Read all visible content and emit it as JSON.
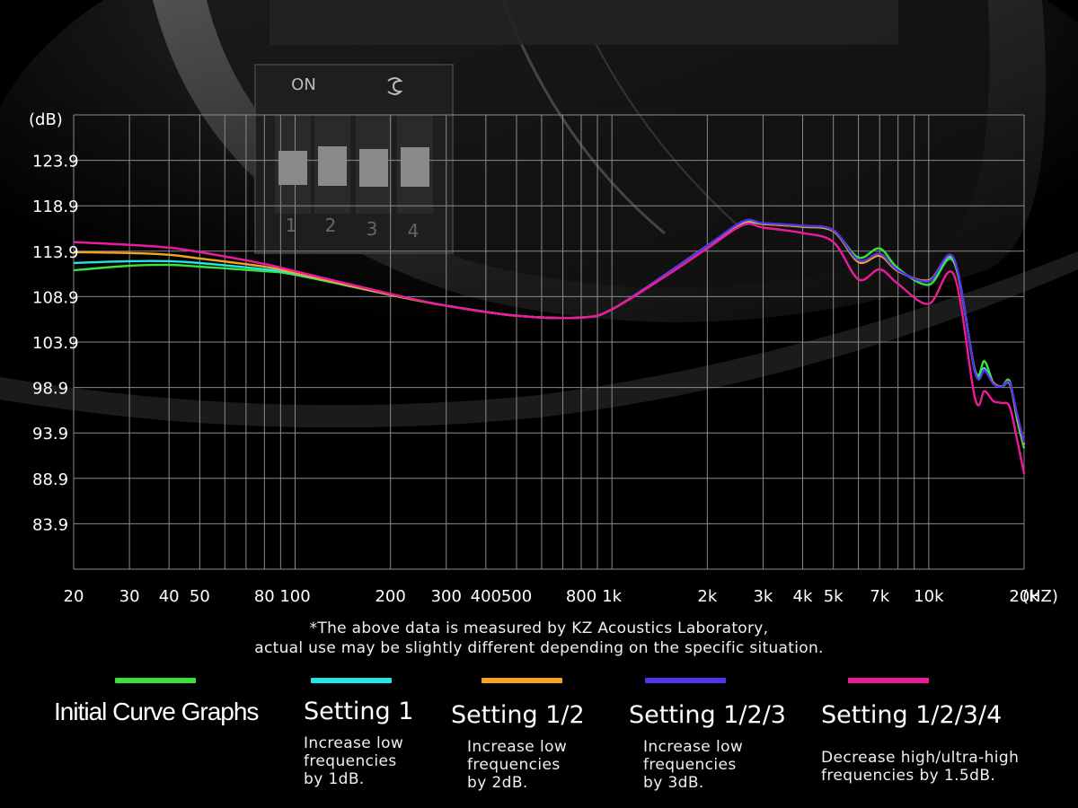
{
  "chart_data": {
    "type": "line",
    "ylabel": "(dB)",
    "xlabel": "(HZ)",
    "y_ticks": [
      "123.9",
      "118.9",
      "113.9",
      "108.9",
      "103.9",
      "98.9",
      "93.9",
      "88.9",
      "83.9"
    ],
    "y_tick_values": [
      123.9,
      118.9,
      113.9,
      108.9,
      103.9,
      98.9,
      93.9,
      88.9,
      83.9
    ],
    "ylim": [
      78.9,
      128.9
    ],
    "x_scale": "log",
    "xlim": [
      20,
      20000
    ],
    "x_ticks": [
      "20",
      "30",
      "40",
      "50",
      "80",
      "100",
      "200",
      "300",
      "400",
      "500",
      "800",
      "1k",
      "2k",
      "3k",
      "4k",
      "5k",
      "7k",
      "10k",
      "20k"
    ],
    "x_tick_values": [
      20,
      30,
      40,
      50,
      80,
      100,
      200,
      300,
      400,
      500,
      800,
      1000,
      2000,
      3000,
      4000,
      5000,
      7000,
      10000,
      20000
    ],
    "grid": true,
    "series": [
      {
        "name": "Initial Curve Graphs",
        "color": "#39e33a",
        "x": [
          20,
          30,
          40,
          50,
          80,
          100,
          200,
          300,
          500,
          800,
          1000,
          1500,
          2000,
          2600,
          3000,
          4000,
          5000,
          6000,
          7000,
          8000,
          10000,
          12000,
          14000,
          15000,
          16000,
          17000,
          18000,
          19000,
          20000
        ],
        "y": [
          111.8,
          112.3,
          112.4,
          112.2,
          111.7,
          111.3,
          109.1,
          107.9,
          106.8,
          106.6,
          107.5,
          111.5,
          114.5,
          116.9,
          116.9,
          116.6,
          116.1,
          113.2,
          114.2,
          112.0,
          110.2,
          112.7,
          100.8,
          101.8,
          99.4,
          99.0,
          99.6,
          95.4,
          92.2
        ]
      },
      {
        "name": "Setting 1",
        "color": "#22e6e6",
        "x": [
          20,
          30,
          40,
          50,
          80,
          100,
          200,
          300,
          500,
          800,
          1000,
          1500,
          2000,
          2600,
          3000,
          4000,
          5000,
          6000,
          7000,
          8000,
          10000,
          12000,
          14000,
          15000,
          16000,
          17000,
          18000,
          19000,
          20000
        ],
        "y": [
          112.6,
          112.8,
          112.8,
          112.6,
          111.9,
          111.4,
          109.1,
          107.9,
          106.8,
          106.6,
          107.5,
          111.5,
          114.5,
          117.0,
          116.9,
          116.6,
          116.2,
          112.8,
          113.6,
          111.8,
          110.6,
          112.9,
          100.7,
          101.0,
          99.4,
          99.0,
          99.3,
          95.8,
          92.6
        ]
      },
      {
        "name": "Setting 1/2",
        "color": "#f5a51c",
        "x": [
          20,
          30,
          40,
          50,
          80,
          100,
          200,
          300,
          500,
          800,
          1000,
          1500,
          2000,
          2600,
          3000,
          4000,
          5000,
          6000,
          7000,
          8000,
          10000,
          12000,
          14000,
          15000,
          16000,
          17000,
          18000,
          19000,
          20000
        ],
        "y": [
          113.8,
          113.7,
          113.5,
          113.1,
          112.2,
          111.5,
          109.1,
          107.9,
          106.8,
          106.6,
          107.5,
          111.5,
          114.5,
          117.1,
          116.9,
          116.6,
          116.1,
          112.7,
          113.4,
          111.7,
          110.7,
          113.0,
          100.6,
          100.8,
          99.4,
          99.0,
          99.3,
          95.8,
          92.6
        ]
      },
      {
        "name": "Setting 1/2/3",
        "color": "#5533ee",
        "x": [
          20,
          30,
          40,
          50,
          80,
          100,
          200,
          300,
          500,
          800,
          1000,
          1500,
          2000,
          2600,
          3000,
          4000,
          5000,
          6000,
          7000,
          8000,
          10000,
          12000,
          14000,
          15000,
          16000,
          17000,
          18000,
          19000,
          20000
        ],
        "y": [
          114.9,
          114.6,
          114.3,
          113.8,
          112.5,
          111.7,
          109.2,
          107.9,
          106.8,
          106.6,
          107.5,
          111.5,
          114.5,
          117.2,
          117.0,
          116.7,
          116.2,
          112.9,
          113.6,
          111.8,
          110.6,
          113.1,
          100.6,
          100.8,
          99.3,
          99.0,
          99.4,
          96.0,
          92.8
        ]
      },
      {
        "name": "Setting 1/2/3/4",
        "color": "#ee1a98",
        "x": [
          20,
          30,
          40,
          50,
          80,
          100,
          200,
          300,
          500,
          800,
          1000,
          1500,
          2000,
          2600,
          3000,
          4000,
          5000,
          6000,
          7000,
          8000,
          10000,
          12000,
          14000,
          15000,
          16000,
          17000,
          18000,
          19000,
          20000
        ],
        "y": [
          114.9,
          114.6,
          114.3,
          113.8,
          112.5,
          111.7,
          109.2,
          107.9,
          106.8,
          106.6,
          107.5,
          111.3,
          114.2,
          116.8,
          116.5,
          115.9,
          114.9,
          110.8,
          111.9,
          110.3,
          108.1,
          111.3,
          97.7,
          98.5,
          97.4,
          97.2,
          96.8,
          93.2,
          89.4
        ]
      }
    ]
  },
  "notes": {
    "line1": "*The above data is measured by KZ Acoustics Laboratory,",
    "line2": "actual use may be slightly different depending on the specific situation."
  },
  "legend": [
    {
      "title": "Initial Curve Graphs",
      "desc": "",
      "color": "#39e33a"
    },
    {
      "title": "Setting 1",
      "desc": "Increase low\nfrequencies\nby 1dB.",
      "color": "#22e6e6"
    },
    {
      "title": "Setting 1/2",
      "desc": "Increase low\nfrequencies\nby 2dB.",
      "color": "#f5a51c"
    },
    {
      "title": "Setting 1/2/3",
      "desc": "Increase low\nfrequencies\nby 3dB.",
      "color": "#5533ee"
    },
    {
      "title": "Setting 1/2/3/4",
      "desc": "Decrease high/ultra-high\nfrequencies by 1.5dB.",
      "color": "#ee1a98"
    }
  ],
  "background": {
    "switch_labels": [
      "ON",
      "1",
      "2",
      "3",
      "4"
    ]
  }
}
